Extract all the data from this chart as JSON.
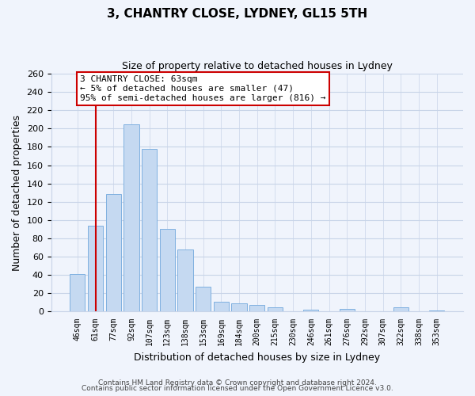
{
  "title": "3, CHANTRY CLOSE, LYDNEY, GL15 5TH",
  "subtitle": "Size of property relative to detached houses in Lydney",
  "xlabel": "Distribution of detached houses by size in Lydney",
  "ylabel": "Number of detached properties",
  "bar_labels": [
    "46sqm",
    "61sqm",
    "77sqm",
    "92sqm",
    "107sqm",
    "123sqm",
    "138sqm",
    "153sqm",
    "169sqm",
    "184sqm",
    "200sqm",
    "215sqm",
    "230sqm",
    "246sqm",
    "261sqm",
    "276sqm",
    "292sqm",
    "307sqm",
    "322sqm",
    "338sqm",
    "353sqm"
  ],
  "bar_values": [
    41,
    94,
    128,
    205,
    178,
    90,
    68,
    27,
    11,
    9,
    7,
    5,
    0,
    2,
    0,
    3,
    0,
    0,
    5,
    0,
    1
  ],
  "bar_color": "#c5d9f1",
  "bar_edge_color": "#7fb0e0",
  "vline_x": 1,
  "vline_color": "#cc0000",
  "annotation_text": "3 CHANTRY CLOSE: 63sqm\n← 5% of detached houses are smaller (47)\n95% of semi-detached houses are larger (816) →",
  "annotation_box_color": "#ffffff",
  "annotation_box_edge": "#cc0000",
  "ylim": [
    0,
    260
  ],
  "yticks": [
    0,
    20,
    40,
    60,
    80,
    100,
    120,
    140,
    160,
    180,
    200,
    220,
    240,
    260
  ],
  "footer_line1": "Contains HM Land Registry data © Crown copyright and database right 2024.",
  "footer_line2": "Contains public sector information licensed under the Open Government Licence v3.0.",
  "bg_color": "#f0f4fc",
  "grid_color": "#c8d4e8"
}
